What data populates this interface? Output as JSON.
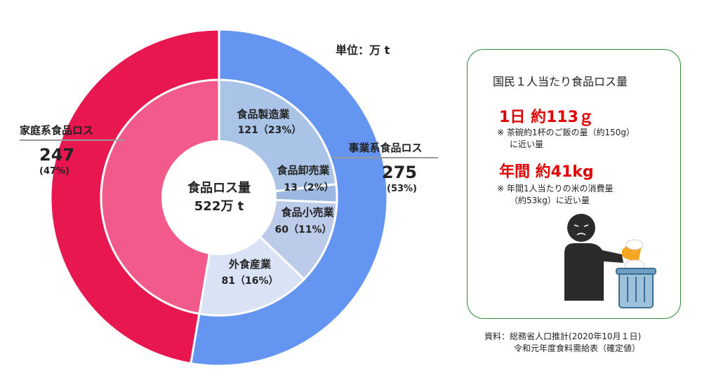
{
  "unit_label": "単位：万 t",
  "chart_data": {
    "type": "pie",
    "variant": "nested-donut",
    "center_label": "食品ロス量",
    "center_value": "522万 t",
    "total": 522,
    "outer_ring": [
      {
        "name": "事業系食品ロス",
        "value": 275,
        "value_label": "275",
        "pct_label": "(53%)",
        "color": "#6495f0"
      },
      {
        "name": "家庭系食品ロス",
        "value": 247,
        "value_label": "247",
        "pct_label": "(47%)",
        "color": "#e8174f"
      }
    ],
    "inner_ring": [
      {
        "name": "食品製造業",
        "value": 121,
        "value_label": "121（23%）",
        "color": "#a9c4e6"
      },
      {
        "name": "食品卸売業",
        "value": 13,
        "value_label": "13（2%）",
        "color": "#9db8e0"
      },
      {
        "name": "食品小売業",
        "value": 60,
        "value_label": "60（11%）",
        "color": "#bccbea"
      },
      {
        "name": "外食産業",
        "value": 81,
        "value_label": "81（16%）",
        "color": "#dae3f5"
      },
      {
        "name": "",
        "value": 247,
        "value_label": "",
        "color": "#f15a8a"
      }
    ]
  },
  "info_box": {
    "title": "国民１人当たり食品ロス量",
    "daily_value": "1日 約113ｇ",
    "daily_note_1": "※ 茶碗約1杯のご飯の量（約150g）",
    "daily_note_2": "に近い量",
    "yearly_value": "年間 約41kg",
    "yearly_note_1": "※ 年間1人当たりの米の消費量",
    "yearly_note_2": "（約53kg）に近い量",
    "illustration_icon": "person-discarding-rice-icon",
    "colors": {
      "border": "#2e8b3d",
      "highlight": "#e00000"
    }
  },
  "source": {
    "line1": "資料：総務省人口推計(2020年10月１日)",
    "line2": "令和元年度食料需給表（確定値）"
  }
}
